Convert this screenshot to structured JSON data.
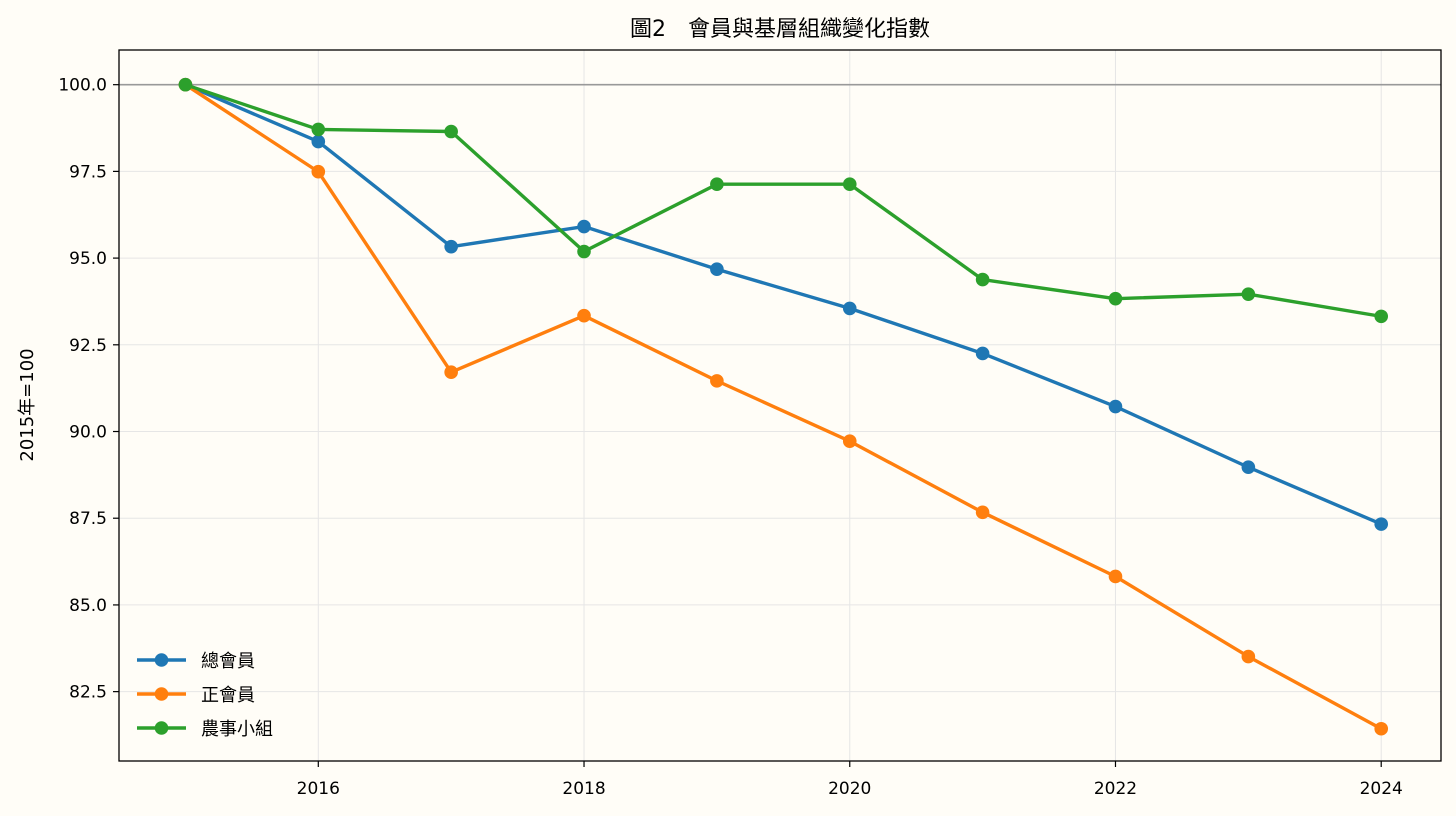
{
  "chart_data": {
    "type": "line",
    "title": "圖2　會員與基層組織變化指數",
    "xlabel": "",
    "ylabel": "2015年=100",
    "x": [
      2015,
      2016,
      2017,
      2018,
      2019,
      2020,
      2021,
      2022,
      2023,
      2024
    ],
    "xticks": [
      2016,
      2018,
      2020,
      2022,
      2024
    ],
    "xlim": [
      2014.5,
      2024.45
    ],
    "ylim": [
      80.5,
      101.0
    ],
    "yticks": [
      82.5,
      85.0,
      87.5,
      90.0,
      92.5,
      95.0,
      97.5,
      100.0
    ],
    "ytick_labels": [
      "82.5",
      "85.0",
      "87.5",
      "90.0",
      "92.5",
      "95.0",
      "97.5",
      "100.0"
    ],
    "reference_line": 100.0,
    "grid": true,
    "legend_position": "lower-left",
    "series": [
      {
        "name": "總會員",
        "color": "#1f77b4",
        "values": [
          100.0,
          98.36,
          95.33,
          95.91,
          94.68,
          93.55,
          92.25,
          90.72,
          88.97,
          87.33
        ]
      },
      {
        "name": "正會員",
        "color": "#ff7f0e",
        "values": [
          100.0,
          97.49,
          91.71,
          93.34,
          91.46,
          89.72,
          87.67,
          85.82,
          83.51,
          81.43
        ]
      },
      {
        "name": "農事小組",
        "color": "#2ca02c",
        "values": [
          100.0,
          98.71,
          98.65,
          95.19,
          97.13,
          97.13,
          94.38,
          93.83,
          93.96,
          93.32
        ]
      }
    ]
  }
}
